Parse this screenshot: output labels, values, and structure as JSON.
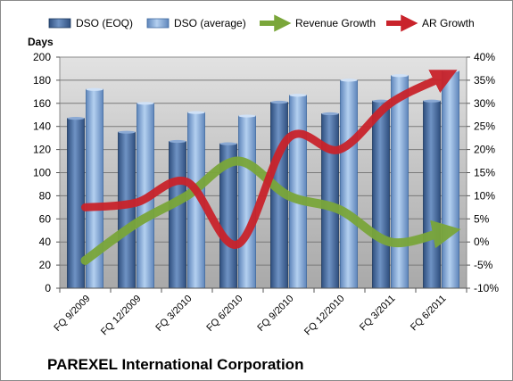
{
  "chart_data": {
    "type": "bar",
    "title": "PAREXEL International Corporation",
    "ylabel": "Days",
    "ylim": [
      0,
      200
    ],
    "y2lim": [
      -10,
      40
    ],
    "yticks": [
      0,
      20,
      40,
      60,
      80,
      100,
      120,
      140,
      160,
      180,
      200
    ],
    "y2ticks": [
      "-10%",
      "-5%",
      "0%",
      "5%",
      "10%",
      "15%",
      "20%",
      "25%",
      "30%",
      "35%",
      "40%"
    ],
    "categories": [
      "FQ 9/2009",
      "FQ 12/2009",
      "FQ 3/2010",
      "FQ 6/2010",
      "FQ 9/2010",
      "FQ 12/2010",
      "FQ 3/2011",
      "FQ 6/2011"
    ],
    "grid": true,
    "legend": "top",
    "series": [
      {
        "name": "DSO (EOQ)",
        "kind": "bar",
        "axis": "left",
        "color": "#4a6fa5",
        "values": [
          147,
          135,
          127,
          125,
          161,
          151,
          162,
          162
        ]
      },
      {
        "name": "DSO (average)",
        "kind": "bar",
        "axis": "left",
        "color": "#7ea7d8",
        "values": [
          172,
          160,
          152,
          149,
          167,
          180,
          184,
          188
        ]
      },
      {
        "name": "Revenue Growth",
        "kind": "arrow-line",
        "axis": "right",
        "color": "#7aa63a",
        "values": [
          -4,
          4,
          10,
          17.5,
          10,
          7,
          0,
          2
        ]
      },
      {
        "name": "AR Growth",
        "kind": "arrow-line",
        "axis": "right",
        "color": "#c9232b",
        "values": [
          7.5,
          8.5,
          13,
          -0.5,
          22.5,
          20,
          30,
          35.5
        ]
      }
    ]
  }
}
